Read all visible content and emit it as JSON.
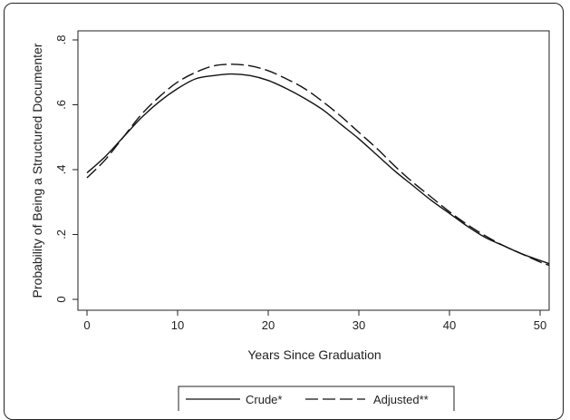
{
  "chart_data": {
    "type": "line",
    "title": "",
    "xlabel": "Years Since Graduation",
    "ylabel": "Probability of Being a Structured Documenter",
    "xlim": [
      0,
      52
    ],
    "ylim": [
      0,
      0.8
    ],
    "x_ticks": [
      0,
      10,
      20,
      30,
      40,
      50
    ],
    "y_ticks": [
      0,
      0.2,
      0.4,
      0.6,
      0.8
    ],
    "x_tick_labels": [
      "0",
      "10",
      "20",
      "30",
      "40",
      "50"
    ],
    "y_tick_labels": [
      "0",
      ".2",
      ".4",
      ".6",
      ".8"
    ],
    "grid": false,
    "legend_position": "bottom",
    "series": [
      {
        "name": "Crude*",
        "style": "solid",
        "x": [
          0,
          2,
          4,
          6,
          8,
          10,
          12,
          14,
          16,
          18,
          20,
          22,
          24,
          26,
          28,
          30,
          32,
          34,
          36,
          38,
          40,
          42,
          44,
          46,
          48,
          50,
          51
        ],
        "y": [
          0.39,
          0.44,
          0.5,
          0.56,
          0.61,
          0.65,
          0.68,
          0.69,
          0.695,
          0.69,
          0.675,
          0.65,
          0.62,
          0.585,
          0.54,
          0.495,
          0.445,
          0.395,
          0.35,
          0.305,
          0.265,
          0.225,
          0.19,
          0.165,
          0.14,
          0.12,
          0.11
        ]
      },
      {
        "name": "Adjusted**",
        "style": "dashed",
        "x": [
          0,
          2,
          4,
          6,
          8,
          10,
          12,
          14,
          16,
          18,
          20,
          22,
          24,
          26,
          28,
          30,
          32,
          34,
          36,
          38,
          40,
          42,
          44,
          46,
          48,
          50,
          51
        ],
        "y": [
          0.375,
          0.43,
          0.5,
          0.57,
          0.625,
          0.67,
          0.7,
          0.72,
          0.725,
          0.72,
          0.705,
          0.68,
          0.65,
          0.61,
          0.565,
          0.515,
          0.465,
          0.41,
          0.36,
          0.315,
          0.27,
          0.23,
          0.195,
          0.165,
          0.14,
          0.115,
          0.105
        ]
      }
    ]
  },
  "legend": {
    "items": [
      "Crude*",
      "Adjusted**"
    ]
  }
}
